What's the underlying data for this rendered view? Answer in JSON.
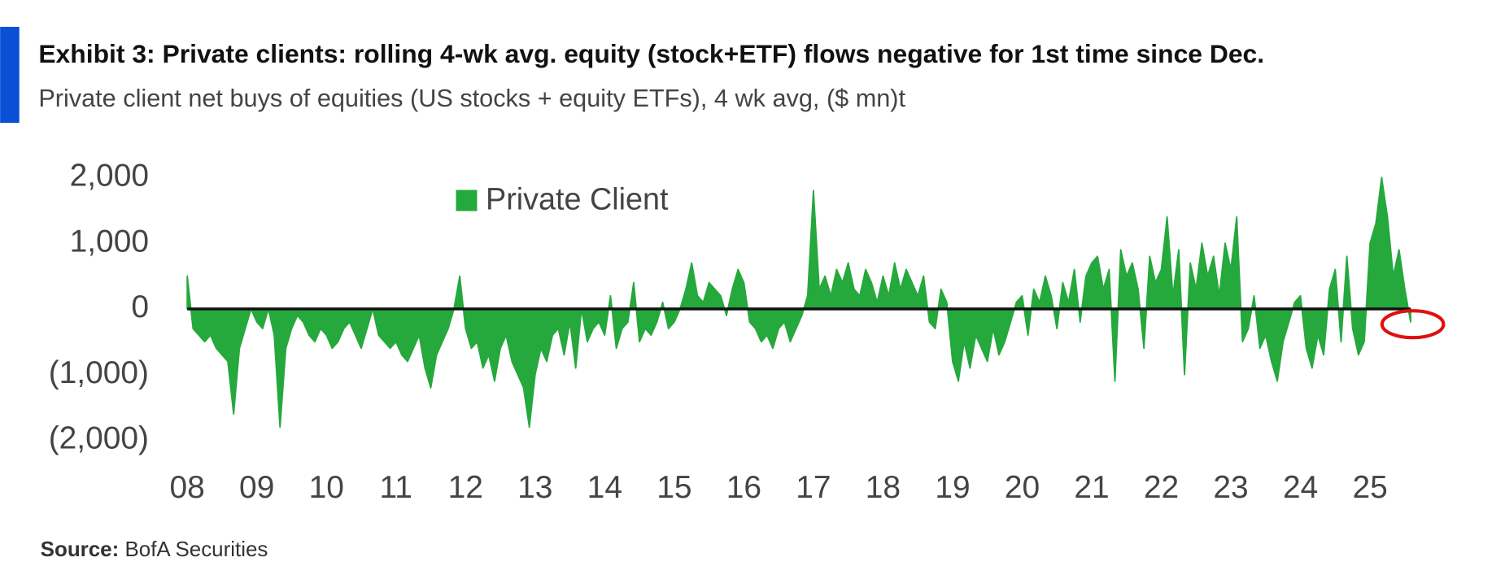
{
  "chart_data": {
    "type": "area",
    "title": "Exhibit 3: Private clients: rolling 4-wk avg. equity (stock+ETF) flows negative for 1st time since Dec.",
    "subtitle": "Private client net buys of equities (US stocks + equity ETFs), 4 wk avg, ($ mn)t",
    "source_label": "Source:",
    "source": "BofA Securities",
    "categories": [
      "08",
      null,
      null,
      null,
      null,
      null,
      null,
      null,
      null,
      null,
      null,
      null,
      "09",
      null,
      null,
      null,
      null,
      null,
      null,
      null,
      null,
      null,
      null,
      null,
      "10",
      null,
      null,
      null,
      null,
      null,
      null,
      null,
      null,
      null,
      null,
      null,
      "11",
      null,
      null,
      null,
      null,
      null,
      null,
      null,
      null,
      null,
      null,
      null,
      "12",
      null,
      null,
      null,
      null,
      null,
      null,
      null,
      null,
      null,
      null,
      null,
      "13",
      null,
      null,
      null,
      null,
      null,
      null,
      null,
      null,
      null,
      null,
      null,
      "14",
      null,
      null,
      null,
      null,
      null,
      null,
      null,
      null,
      null,
      null,
      null,
      "15",
      null,
      null,
      null,
      null,
      null,
      null,
      null,
      null,
      null,
      null,
      null,
      "16",
      null,
      null,
      null,
      null,
      null,
      null,
      null,
      null,
      null,
      null,
      null,
      "17",
      null,
      null,
      null,
      null,
      null,
      null,
      null,
      null,
      null,
      null,
      null,
      "18",
      null,
      null,
      null,
      null,
      null,
      null,
      null,
      null,
      null,
      null,
      null,
      "19",
      null,
      null,
      null,
      null,
      null,
      null,
      null,
      null,
      null,
      null,
      null,
      "20",
      null,
      null,
      null,
      null,
      null,
      null,
      null,
      null,
      null,
      null,
      null,
      "21",
      null,
      null,
      null,
      null,
      null,
      null,
      null,
      null,
      null,
      null,
      null,
      "22",
      null,
      null,
      null,
      null,
      null,
      null,
      null,
      null,
      null,
      null,
      null,
      "23",
      null,
      null,
      null,
      null,
      null,
      null,
      null,
      null,
      null,
      null,
      null,
      "24",
      null,
      null,
      null,
      null,
      null,
      null,
      null,
      null,
      null,
      null,
      null,
      "25",
      null,
      null,
      null,
      null,
      null,
      null,
      null
    ],
    "series": [
      {
        "name": "Private Client",
        "color": "#25a83c",
        "values": [
          500,
          -300,
          -400,
          -500,
          -400,
          -600,
          -700,
          -800,
          -1600,
          -600,
          -300,
          0,
          -200,
          -300,
          0,
          -400,
          -1800,
          -600,
          -300,
          -100,
          -200,
          -400,
          -500,
          -300,
          -400,
          -600,
          -500,
          -300,
          -200,
          -400,
          -600,
          -300,
          0,
          -400,
          -500,
          -600,
          -500,
          -700,
          -800,
          -600,
          -400,
          -900,
          -1200,
          -700,
          -500,
          -300,
          0,
          500,
          -300,
          -600,
          -500,
          -900,
          -700,
          -1100,
          -600,
          -400,
          -800,
          -1000,
          -1200,
          -1800,
          -1000,
          -600,
          -800,
          -400,
          -300,
          -700,
          -200,
          -900,
          0,
          -500,
          -300,
          -200,
          -400,
          200,
          -600,
          -300,
          -200,
          400,
          -500,
          -300,
          -400,
          -200,
          100,
          -300,
          -200,
          0,
          300,
          700,
          200,
          100,
          400,
          300,
          200,
          -100,
          300,
          600,
          400,
          -200,
          -300,
          -500,
          -400,
          -600,
          -300,
          -200,
          -500,
          -300,
          -100,
          200,
          1800,
          300,
          500,
          200,
          600,
          400,
          700,
          300,
          200,
          600,
          400,
          100,
          500,
          200,
          700,
          300,
          600,
          400,
          200,
          500,
          -200,
          -300,
          300,
          100,
          -800,
          -1100,
          -500,
          -900,
          -400,
          -600,
          -800,
          -300,
          -700,
          -500,
          -200,
          100,
          200,
          -400,
          300,
          100,
          500,
          200,
          -300,
          400,
          100,
          600,
          -200,
          500,
          700,
          800,
          300,
          600,
          -1100,
          900,
          500,
          700,
          300,
          -600,
          800,
          400,
          600,
          1400,
          200,
          900,
          -1000,
          700,
          300,
          1000,
          500,
          800,
          200,
          1000,
          600,
          1400,
          -500,
          -300,
          200,
          -600,
          -400,
          -800,
          -1100,
          -500,
          -200,
          100,
          200,
          -600,
          -900,
          -400,
          -700,
          300,
          600,
          -500,
          800,
          -300,
          -700,
          -500,
          1000,
          1300,
          2000,
          1400,
          500,
          900,
          300,
          -200
        ]
      }
    ],
    "ylim": [
      -2000,
      2000
    ],
    "yticks": [
      {
        "value": 2000,
        "label": "2,000"
      },
      {
        "value": 1000,
        "label": "1,000"
      },
      0,
      {
        "value": -1000,
        "label": "(1,000)"
      },
      {
        "value": -2000,
        "label": "(2,000)"
      }
    ],
    "legend": "top-center"
  }
}
